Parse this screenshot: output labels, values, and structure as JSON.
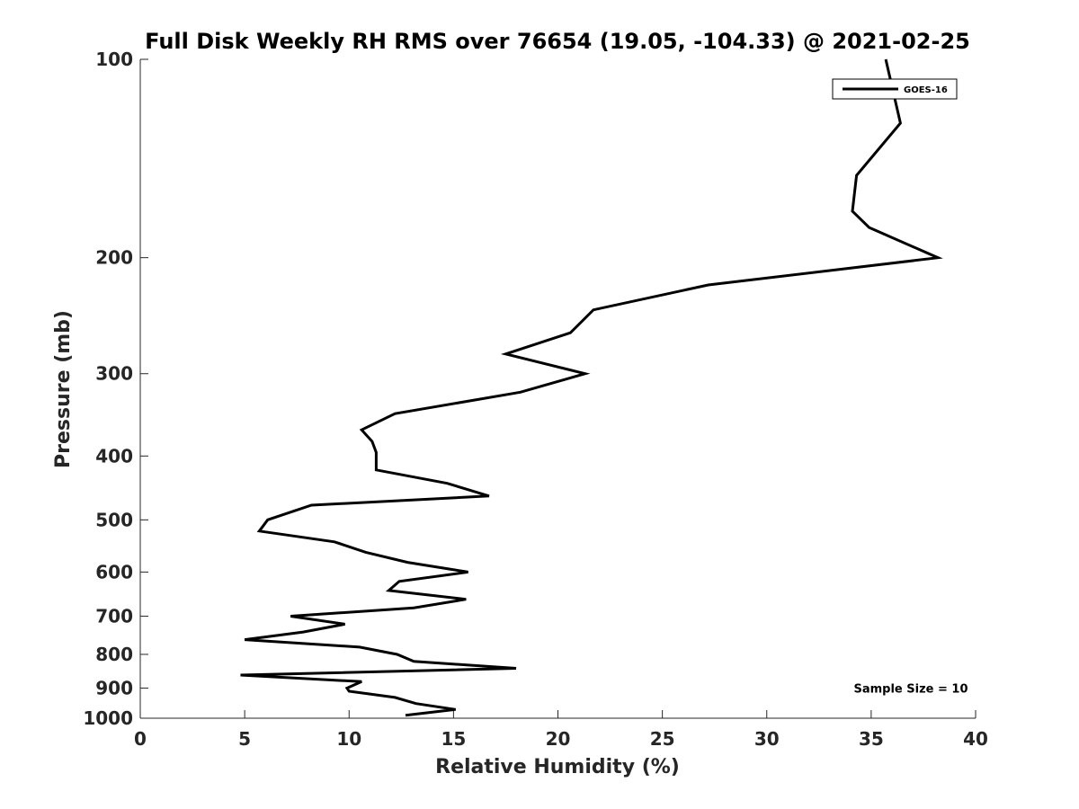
{
  "chart_data": {
    "type": "line",
    "title": "Full Disk Weekly RH RMS over 76654 (19.05, -104.33) @ 2021-02-25",
    "xlabel": "Relative Humidity (%)",
    "ylabel": "Pressure (mb)",
    "xlim": [
      0,
      40
    ],
    "ylim": [
      100,
      1000
    ],
    "y_scale": "log",
    "y_reversed": true,
    "x_ticks": [
      0,
      5,
      10,
      15,
      20,
      25,
      30,
      35,
      40
    ],
    "y_ticks": [
      100,
      200,
      300,
      400,
      500,
      600,
      700,
      800,
      900,
      1000
    ],
    "legend_position": "top-right",
    "series": [
      {
        "name": "GOES-16",
        "color": "#000000",
        "points": [
          [
            35.7,
            100
          ],
          [
            36.4,
            125
          ],
          [
            34.3,
            150
          ],
          [
            34.1,
            170
          ],
          [
            34.9,
            180
          ],
          [
            38.2,
            200
          ],
          [
            27.2,
            220
          ],
          [
            21.7,
            240
          ],
          [
            20.6,
            260
          ],
          [
            17.5,
            280
          ],
          [
            21.3,
            300
          ],
          [
            18.2,
            320
          ],
          [
            12.2,
            345
          ],
          [
            10.6,
            365
          ],
          [
            11.1,
            380
          ],
          [
            11.3,
            395
          ],
          [
            11.3,
            420
          ],
          [
            14.7,
            440
          ],
          [
            16.7,
            460
          ],
          [
            8.2,
            475
          ],
          [
            6.1,
            500
          ],
          [
            5.7,
            520
          ],
          [
            9.3,
            540
          ],
          [
            10.8,
            560
          ],
          [
            12.8,
            580
          ],
          [
            15.7,
            600
          ],
          [
            12.4,
            620
          ],
          [
            11.9,
            640
          ],
          [
            15.6,
            660
          ],
          [
            13.1,
            680
          ],
          [
            7.2,
            700
          ],
          [
            9.8,
            720
          ],
          [
            7.8,
            740
          ],
          [
            5.0,
            760
          ],
          [
            10.5,
            780
          ],
          [
            12.3,
            800
          ],
          [
            13.1,
            820
          ],
          [
            18.0,
            840
          ],
          [
            4.8,
            860
          ],
          [
            10.6,
            880
          ],
          [
            9.9,
            900
          ],
          [
            10.0,
            910
          ],
          [
            12.2,
            930
          ],
          [
            13.2,
            950
          ],
          [
            15.1,
            970
          ],
          [
            12.7,
            990
          ]
        ]
      }
    ],
    "annotations": [
      {
        "text": "Sample Size = 10",
        "x": 36.9,
        "y": 900
      }
    ]
  }
}
